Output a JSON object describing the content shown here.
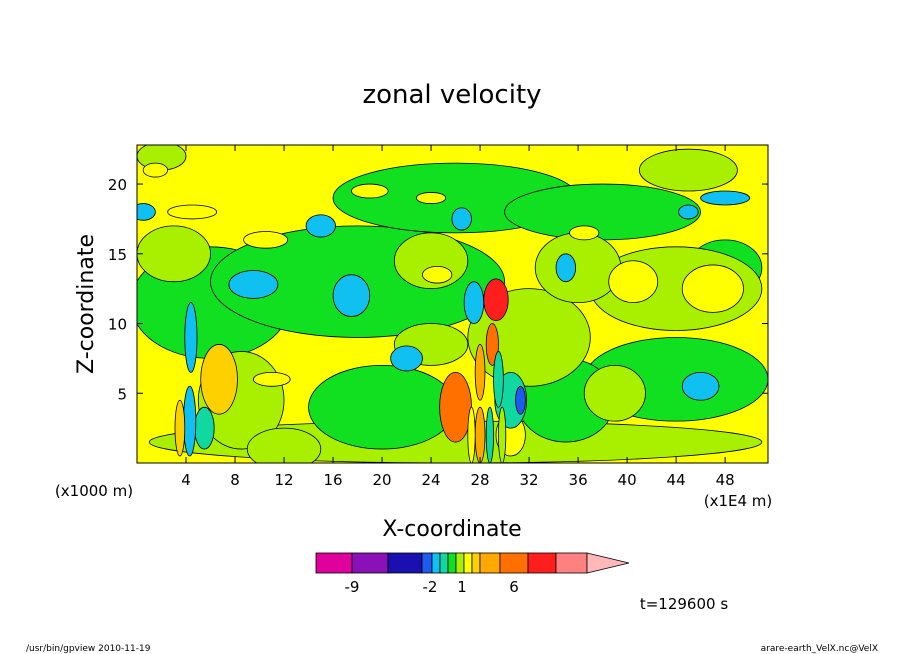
{
  "chart_data": {
    "type": "heatmap",
    "title": "zonal velocity",
    "xlabel": "X-coordinate",
    "ylabel": "Z-coordinate",
    "x_unit_left": "(x1000 m)",
    "x_unit_right": "(x1E4 m)",
    "xlim": [
      0,
      51.5
    ],
    "ylim": [
      0,
      22.8
    ],
    "x_ticks": [
      "4",
      "8",
      "12",
      "16",
      "20",
      "24",
      "28",
      "32",
      "36",
      "40",
      "44",
      "48"
    ],
    "y_ticks": [
      "5",
      "10",
      "15",
      "20"
    ],
    "colorbar": {
      "levels": [
        -11,
        -9,
        -7,
        -5,
        -2,
        -1,
        0,
        1,
        2,
        3,
        4,
        6,
        8,
        10,
        12
      ],
      "tick_labels": [
        "-9",
        "-2",
        "1",
        "6"
      ],
      "colors": [
        "#e0009c",
        "#8a10b8",
        "#1a10b0",
        "#1e5af0",
        "#10c0f0",
        "#10d8a0",
        "#10e020",
        "#a8f000",
        "#ffff00",
        "#ffd000",
        "#ffa800",
        "#ff7000",
        "#ff1e1e",
        "#ff8080",
        "#ffb8b8"
      ]
    },
    "regions": [
      {
        "value": 0.5,
        "shape": "ellipse",
        "x": 26,
        "z": 1.5,
        "rx": 25,
        "rz": 1.5
      },
      {
        "value": 0.5,
        "shape": "ellipse",
        "x": 2,
        "z": 22,
        "rx": 2,
        "rz": 1
      },
      {
        "value": -0.5,
        "shape": "ellipse",
        "x": 6,
        "z": 11.5,
        "rx": 6.5,
        "rz": 4
      },
      {
        "value": -0.5,
        "shape": "ellipse",
        "x": 18,
        "z": 13,
        "rx": 12,
        "rz": 4
      },
      {
        "value": -0.5,
        "shape": "ellipse",
        "x": 26,
        "z": 19,
        "rx": 10,
        "rz": 2.5
      },
      {
        "value": -0.5,
        "shape": "ellipse",
        "x": 38,
        "z": 18,
        "rx": 8,
        "rz": 2
      },
      {
        "value": -0.5,
        "shape": "ellipse",
        "x": 44,
        "z": 6,
        "rx": 7.5,
        "rz": 3
      },
      {
        "value": -0.5,
        "shape": "ellipse",
        "x": 20,
        "z": 4,
        "rx": 6,
        "rz": 3
      },
      {
        "value": -0.5,
        "shape": "ellipse",
        "x": 35,
        "z": 4.5,
        "rx": 4,
        "rz": 3
      },
      {
        "value": -0.5,
        "shape": "ellipse",
        "x": 48,
        "z": 14,
        "rx": 3,
        "rz": 2
      },
      {
        "value": 0.5,
        "shape": "ellipse",
        "x": 44,
        "z": 12.5,
        "rx": 7,
        "rz": 3
      },
      {
        "value": 0.5,
        "shape": "ellipse",
        "x": 32,
        "z": 9,
        "rx": 5,
        "rz": 3.5
      },
      {
        "value": 0.5,
        "shape": "ellipse",
        "x": 36,
        "z": 14,
        "rx": 3.5,
        "rz": 2.5
      },
      {
        "value": 0.5,
        "shape": "ellipse",
        "x": 24,
        "z": 14.5,
        "rx": 3,
        "rz": 2
      },
      {
        "value": 0.5,
        "shape": "ellipse",
        "x": 3,
        "z": 15,
        "rx": 3,
        "rz": 2
      },
      {
        "value": 0.5,
        "shape": "ellipse",
        "x": 24,
        "z": 8.5,
        "rx": 3,
        "rz": 1.5
      },
      {
        "value": 0.5,
        "shape": "ellipse",
        "x": 8.5,
        "z": 4.5,
        "rx": 3.5,
        "rz": 3.5
      },
      {
        "value": 0.5,
        "shape": "ellipse",
        "x": 12,
        "z": 1,
        "rx": 3,
        "rz": 1.5
      },
      {
        "value": 0.5,
        "shape": "ellipse",
        "x": 39,
        "z": 5,
        "rx": 2.5,
        "rz": 2
      },
      {
        "value": 0.5,
        "shape": "ellipse",
        "x": 45,
        "z": 21,
        "rx": 4,
        "rz": 1.5
      },
      {
        "value": 1.5,
        "shape": "ellipse",
        "x": 40.5,
        "z": 13,
        "rx": 2,
        "rz": 1.5
      },
      {
        "value": 1.5,
        "shape": "ellipse",
        "x": 47,
        "z": 12.5,
        "rx": 2.5,
        "rz": 1.7
      },
      {
        "value": 1.5,
        "shape": "ellipse",
        "x": 19,
        "z": 19.5,
        "rx": 1.5,
        "rz": 0.5
      },
      {
        "value": 1.5,
        "shape": "ellipse",
        "x": 24,
        "z": 19,
        "rx": 1.2,
        "rz": 0.4
      },
      {
        "value": 1.5,
        "shape": "ellipse",
        "x": 4.5,
        "z": 18,
        "rx": 2,
        "rz": 0.5
      },
      {
        "value": 1.5,
        "shape": "ellipse",
        "x": 10.5,
        "z": 16,
        "rx": 1.8,
        "rz": 0.6
      },
      {
        "value": 1.5,
        "shape": "ellipse",
        "x": 36.5,
        "z": 16.5,
        "rx": 1.2,
        "rz": 0.5
      },
      {
        "value": 1.5,
        "shape": "ellipse",
        "x": 1.5,
        "z": 21,
        "rx": 1,
        "rz": 0.5
      },
      {
        "value": 1.5,
        "shape": "ellipse",
        "x": 11,
        "z": 6,
        "rx": 1.5,
        "rz": 0.5
      },
      {
        "value": 1.5,
        "shape": "ellipse",
        "x": 24.5,
        "z": 13.5,
        "rx": 1.2,
        "rz": 0.6
      },
      {
        "value": 1.5,
        "shape": "ellipse",
        "x": 30.5,
        "z": 2,
        "rx": 1.2,
        "rz": 1.5
      },
      {
        "value": -2.5,
        "shape": "ellipse",
        "x": 17.5,
        "z": 12,
        "rx": 1.5,
        "rz": 1.5
      },
      {
        "value": -2.5,
        "shape": "ellipse",
        "x": 9.5,
        "z": 12.8,
        "rx": 2,
        "rz": 1
      },
      {
        "value": -2.5,
        "shape": "ellipse",
        "x": 46,
        "z": 5.5,
        "rx": 1.5,
        "rz": 1
      },
      {
        "value": -2.5,
        "shape": "ellipse",
        "x": 22,
        "z": 7.5,
        "rx": 1.3,
        "rz": 0.9
      },
      {
        "value": -2.5,
        "shape": "ellipse",
        "x": 35,
        "z": 14,
        "rx": 0.8,
        "rz": 1
      },
      {
        "value": -2.5,
        "shape": "ellipse",
        "x": 15,
        "z": 17,
        "rx": 1.2,
        "rz": 0.8
      },
      {
        "value": -2.5,
        "shape": "ellipse",
        "x": 0.5,
        "z": 18,
        "rx": 1,
        "rz": 0.6
      },
      {
        "value": -2.5,
        "shape": "ellipse",
        "x": 48,
        "z": 19,
        "rx": 2,
        "rz": 0.5
      },
      {
        "value": -2.5,
        "shape": "ellipse",
        "x": 26.5,
        "z": 17.5,
        "rx": 0.8,
        "rz": 0.8
      },
      {
        "value": -2.5,
        "shape": "ellipse",
        "x": 45,
        "z": 18,
        "rx": 0.8,
        "rz": 0.5
      },
      {
        "value": -1.5,
        "shape": "ellipse",
        "x": 30.5,
        "z": 4.5,
        "rx": 1.3,
        "rz": 2
      },
      {
        "value": -6,
        "shape": "ellipse",
        "x": 31.3,
        "z": 4.5,
        "rx": 0.4,
        "rz": 1
      },
      {
        "value": 4,
        "shape": "ellipse",
        "x": 26,
        "z": 4,
        "rx": 1.3,
        "rz": 2.5
      },
      {
        "value": 2.5,
        "shape": "ellipse",
        "x": 6.7,
        "z": 6,
        "rx": 1.5,
        "rz": 2.5
      },
      {
        "value": -1.5,
        "shape": "ellipse",
        "x": 5.5,
        "z": 2.5,
        "rx": 0.8,
        "rz": 1.5
      },
      {
        "value": -2.5,
        "shape": "ellipse",
        "x": 4.3,
        "z": 3,
        "rx": 0.5,
        "rz": 2.5
      },
      {
        "value": 2.5,
        "shape": "ellipse",
        "x": 3.5,
        "z": 2.5,
        "rx": 0.4,
        "rz": 2
      },
      {
        "value": -2.5,
        "shape": "ellipse",
        "x": 4.4,
        "z": 9,
        "rx": 0.5,
        "rz": 2.5
      },
      {
        "value": -4,
        "shape": "ellipse",
        "x": 27.5,
        "z": 11.5,
        "rx": 0.8,
        "rz": 1.5
      },
      {
        "value": 7,
        "shape": "ellipse",
        "x": 29.3,
        "z": 11.7,
        "rx": 1,
        "rz": 1.5
      },
      {
        "value": 4,
        "shape": "ellipse",
        "x": 29,
        "z": 8.5,
        "rx": 0.5,
        "rz": 1.5
      },
      {
        "value": 3,
        "shape": "ellipse",
        "x": 28,
        "z": 6.5,
        "rx": 0.4,
        "rz": 2
      },
      {
        "value": -2,
        "shape": "ellipse",
        "x": 29.5,
        "z": 6,
        "rx": 0.4,
        "rz": 2
      },
      {
        "value": 3,
        "shape": "ellipse",
        "x": 28,
        "z": 2,
        "rx": 0.4,
        "rz": 2
      },
      {
        "value": -1.5,
        "shape": "ellipse",
        "x": 28.8,
        "z": 2,
        "rx": 0.3,
        "rz": 2
      },
      {
        "value": 0.5,
        "shape": "ellipse",
        "x": 29.8,
        "z": 2,
        "rx": 0.3,
        "rz": 2
      },
      {
        "value": 1.5,
        "shape": "ellipse",
        "x": 27.3,
        "z": 2,
        "rx": 0.3,
        "rz": 2
      }
    ],
    "annotation": "t=129600 s"
  },
  "footer": {
    "left": "/usr/bin/gpview   2010-11-19",
    "right": "arare-earth_VelX.nc@VelX"
  }
}
